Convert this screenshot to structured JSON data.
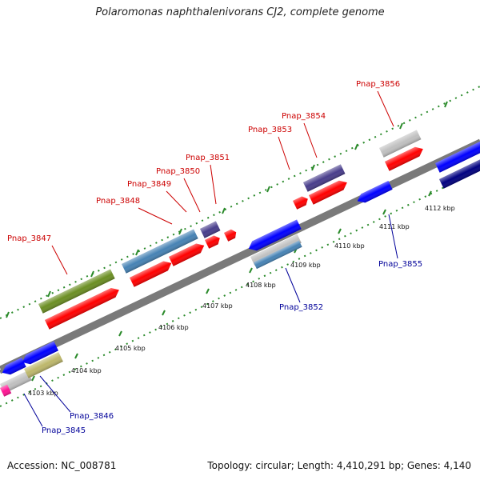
{
  "title": "Polaromonas naphthalenivorans CJ2, complete genome",
  "footer": {
    "accession": "Accession: NC_008781",
    "summary": "Topology: circular; Length: 4,410,291 bp; Genes: 4,140"
  },
  "colors": {
    "label_top": "#cc0000",
    "label_bottom": "#000099",
    "backbone": "#7a7a7a",
    "tick": "#2a8a2a"
  },
  "tick_labels": [
    "4103 kbp",
    "4104 kbp",
    "4105 kbp",
    "4106 kbp",
    "4107 kbp",
    "4108 kbp",
    "4109 kbp",
    "4110 kbp",
    "4111 kbp",
    "4112 kbp"
  ],
  "genes_top": [
    {
      "label": "Pnap_3847",
      "color": "#6b8e23"
    },
    {
      "label": "Pnap_3848",
      "color": "#4682b4"
    },
    {
      "label": "Pnap_3849",
      "color": "#ff0000"
    },
    {
      "label": "Pnap_3850",
      "color": "#ff0000"
    },
    {
      "label": "Pnap_3851",
      "color": "#483d8b"
    },
    {
      "label": "Pnap_3853",
      "color": "#ff0000"
    },
    {
      "label": "Pnap_3854",
      "color": "#483d8b"
    },
    {
      "label": "Pnap_3856",
      "color": "#c0c0c0"
    }
  ],
  "genes_bottom": [
    {
      "label": "Pnap_3845",
      "color": "#c0c0c0"
    },
    {
      "label": "Pnap_3846",
      "color": "#bdb76b"
    },
    {
      "label": "Pnap_3852",
      "color": "#4682b4"
    },
    {
      "label": "Pnap_3855",
      "color": "#0000ff"
    }
  ]
}
